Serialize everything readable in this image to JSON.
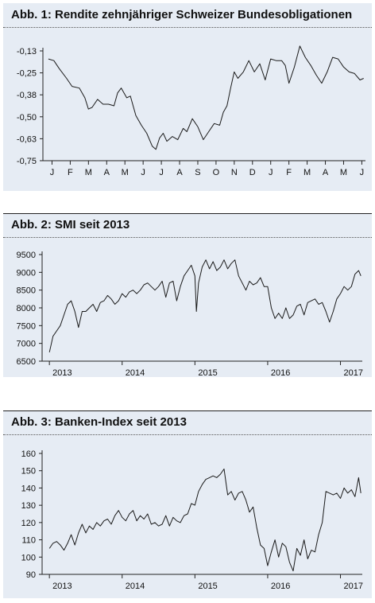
{
  "chart_data": [
    {
      "type": "line",
      "title": "Abb. 1: Rendite zehnjähriger Schweizer Bundesobligationen",
      "y_ticks": [
        "-0,13",
        "-0,25",
        "-0,38",
        "-0,50",
        "-0,63",
        "-0,75"
      ],
      "ylim": [
        -0.75,
        -0.07
      ],
      "x_ticks": [
        "J",
        "F",
        "M",
        "A",
        "M",
        "J",
        "J",
        "A",
        "S",
        "O",
        "N",
        "D",
        "J",
        "F",
        "M",
        "A",
        "M",
        "J"
      ],
      "grid": false,
      "line_color": "#1a1a1a",
      "x_unit": "months (0 = first January tick)",
      "x": [
        -0.2,
        0.1,
        0.4,
        0.8,
        1.1,
        1.5,
        1.8,
        2.0,
        2.2,
        2.5,
        2.8,
        3.1,
        3.4,
        3.6,
        3.8,
        4.1,
        4.3,
        4.6,
        4.9,
        5.2,
        5.5,
        5.7,
        5.9,
        6.1,
        6.3,
        6.6,
        6.9,
        7.2,
        7.4,
        7.7,
        8.0,
        8.3,
        8.6,
        8.9,
        9.2,
        9.4,
        9.6,
        9.8,
        10.0,
        10.2,
        10.5,
        10.8,
        11.1,
        11.4,
        11.7,
        12.0,
        12.3,
        12.6,
        12.8,
        13.0,
        13.3,
        13.6,
        13.9,
        14.2,
        14.5,
        14.8,
        15.1,
        15.4,
        15.7,
        16.0,
        16.3,
        16.6,
        16.9,
        17.1
      ],
      "values": [
        -0.12,
        -0.13,
        -0.18,
        -0.24,
        -0.29,
        -0.3,
        -0.36,
        -0.43,
        -0.42,
        -0.37,
        -0.4,
        -0.4,
        -0.41,
        -0.33,
        -0.3,
        -0.36,
        -0.35,
        -0.47,
        -0.53,
        -0.58,
        -0.66,
        -0.68,
        -0.61,
        -0.58,
        -0.63,
        -0.6,
        -0.62,
        -0.55,
        -0.57,
        -0.49,
        -0.54,
        -0.62,
        -0.57,
        -0.52,
        -0.53,
        -0.45,
        -0.41,
        -0.3,
        -0.2,
        -0.24,
        -0.2,
        -0.13,
        -0.2,
        -0.15,
        -0.25,
        -0.12,
        -0.13,
        -0.13,
        -0.16,
        -0.27,
        -0.17,
        -0.04,
        -0.11,
        -0.16,
        -0.22,
        -0.27,
        -0.2,
        -0.11,
        -0.12,
        -0.17,
        -0.2,
        -0.21,
        -0.25,
        -0.24
      ]
    },
    {
      "type": "line",
      "title": "Abb. 2: SMI seit 2013",
      "y_ticks": [
        "9500",
        "9000",
        "8500",
        "8000",
        "7500",
        "7000",
        "6500"
      ],
      "ylim": [
        6500,
        9500
      ],
      "x_ticks": [
        "2013",
        "2014",
        "2015",
        "2016",
        "2017"
      ],
      "grid": false,
      "line_color": "#1a1a1a",
      "x": [
        2013.0,
        2013.05,
        2013.1,
        2013.15,
        2013.2,
        2013.25,
        2013.3,
        2013.35,
        2013.4,
        2013.45,
        2013.5,
        2013.55,
        2013.6,
        2013.65,
        2013.7,
        2013.75,
        2013.8,
        2013.85,
        2013.9,
        2013.95,
        2014.0,
        2014.05,
        2014.1,
        2014.15,
        2014.2,
        2014.25,
        2014.3,
        2014.35,
        2014.4,
        2014.45,
        2014.5,
        2014.55,
        2014.6,
        2014.65,
        2014.7,
        2014.75,
        2014.8,
        2014.85,
        2014.9,
        2014.95,
        2015.0,
        2015.02,
        2015.05,
        2015.1,
        2015.15,
        2015.2,
        2015.25,
        2015.3,
        2015.35,
        2015.4,
        2015.45,
        2015.5,
        2015.55,
        2015.6,
        2015.65,
        2015.7,
        2015.75,
        2015.8,
        2015.85,
        2015.9,
        2015.95,
        2016.0,
        2016.05,
        2016.1,
        2016.15,
        2016.2,
        2016.25,
        2016.3,
        2016.35,
        2016.4,
        2016.45,
        2016.5,
        2016.55,
        2016.6,
        2016.65,
        2016.7,
        2016.75,
        2016.8,
        2016.85,
        2016.9,
        2016.95,
        2017.0,
        2017.05,
        2017.1,
        2017.15,
        2017.2,
        2017.25,
        2017.28
      ],
      "values": [
        6750,
        7200,
        7350,
        7500,
        7800,
        8100,
        8200,
        7900,
        7450,
        7900,
        7900,
        8000,
        8100,
        7900,
        8150,
        8200,
        8350,
        8250,
        8100,
        8200,
        8400,
        8300,
        8450,
        8500,
        8400,
        8500,
        8650,
        8700,
        8600,
        8500,
        8600,
        8750,
        8300,
        8700,
        8750,
        8200,
        8600,
        8900,
        9050,
        9200,
        8900,
        7900,
        8700,
        9150,
        9350,
        9100,
        9300,
        9050,
        9150,
        9350,
        9100,
        9250,
        9350,
        8900,
        8700,
        8500,
        8750,
        8650,
        8700,
        8850,
        8600,
        8600,
        8000,
        7700,
        7850,
        7700,
        8000,
        7700,
        7800,
        8050,
        8100,
        7800,
        8150,
        8200,
        8250,
        8100,
        8150,
        7900,
        7600,
        7900,
        8250,
        8400,
        8600,
        8500,
        8600,
        8950,
        9050,
        8900
      ]
    },
    {
      "type": "line",
      "title": "Abb. 3: Banken-Index seit 2013",
      "y_ticks": [
        "160",
        "150",
        "140",
        "130",
        "120",
        "110",
        "100",
        "90"
      ],
      "ylim": [
        90,
        160
      ],
      "x_ticks": [
        "2013",
        "2014",
        "2015",
        "2016",
        "2017"
      ],
      "grid": false,
      "line_color": "#1a1a1a",
      "x": [
        2013.0,
        2013.05,
        2013.1,
        2013.15,
        2013.2,
        2013.25,
        2013.3,
        2013.35,
        2013.4,
        2013.45,
        2013.5,
        2013.55,
        2013.6,
        2013.65,
        2013.7,
        2013.75,
        2013.8,
        2013.85,
        2013.9,
        2013.95,
        2014.0,
        2014.05,
        2014.1,
        2014.15,
        2014.2,
        2014.25,
        2014.3,
        2014.35,
        2014.4,
        2014.45,
        2014.5,
        2014.55,
        2014.6,
        2014.65,
        2014.7,
        2014.75,
        2014.8,
        2014.85,
        2014.9,
        2014.95,
        2015.0,
        2015.05,
        2015.1,
        2015.15,
        2015.2,
        2015.25,
        2015.3,
        2015.35,
        2015.4,
        2015.45,
        2015.5,
        2015.55,
        2015.6,
        2015.65,
        2015.7,
        2015.75,
        2015.8,
        2015.85,
        2015.9,
        2015.95,
        2016.0,
        2016.05,
        2016.1,
        2016.15,
        2016.2,
        2016.25,
        2016.3,
        2016.35,
        2016.4,
        2016.45,
        2016.5,
        2016.55,
        2016.6,
        2016.65,
        2016.7,
        2016.75,
        2016.8,
        2016.85,
        2016.9,
        2016.95,
        2017.0,
        2017.05,
        2017.1,
        2017.15,
        2017.2,
        2017.25,
        2017.28
      ],
      "values": [
        105,
        108,
        109,
        107,
        104,
        108,
        113,
        107,
        114,
        119,
        114,
        118,
        116,
        120,
        118,
        121,
        122,
        119,
        124,
        127,
        123,
        121,
        125,
        127,
        121,
        124,
        122,
        125,
        119,
        120,
        118,
        119,
        124,
        118,
        123,
        121,
        120,
        124,
        125,
        131,
        130,
        138,
        142,
        145,
        146,
        147,
        146,
        148,
        151,
        136,
        138,
        133,
        137,
        138,
        133,
        126,
        129,
        117,
        107,
        105,
        95,
        103,
        110,
        100,
        108,
        106,
        97,
        92,
        105,
        101,
        110,
        99,
        104,
        103,
        113,
        120,
        138,
        137,
        136,
        137,
        134,
        140,
        137,
        139,
        135,
        146,
        137
      ]
    }
  ]
}
